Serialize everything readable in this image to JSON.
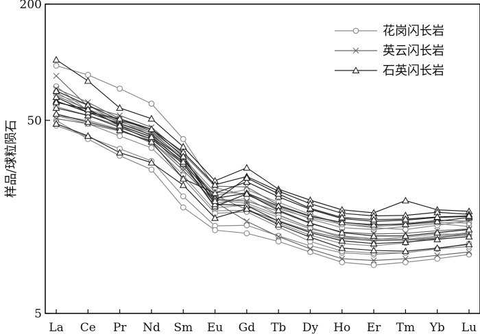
{
  "chart_data": {
    "type": "line",
    "ylabel": "样品/球粒陨石",
    "xlabel": "",
    "title": "",
    "yscale": "log",
    "ylim": [
      5,
      200
    ],
    "yticks": [
      200,
      50,
      5
    ],
    "categories": [
      "La",
      "Ce",
      "Pr",
      "Nd",
      "Sm",
      "Eu",
      "Gd",
      "Tb",
      "Dy",
      "Ho",
      "Er",
      "Tm",
      "Yb",
      "Lu"
    ],
    "legend_position": "top-right",
    "legend": [
      {
        "label": "花岗闪长岩",
        "marker": "circle",
        "color": "#888888"
      },
      {
        "label": "英云闪长岩",
        "marker": "x",
        "color": "#666666"
      },
      {
        "label": "石英闪长岩",
        "marker": "triangle",
        "color": "#222222"
      }
    ],
    "series": [
      {
        "group": 0,
        "values": [
          96,
          86,
          73,
          61,
          40,
          22.4,
          20.5,
          17.8,
          15.4,
          13.9,
          13.6,
          14.1,
          14.6,
          14.1
        ]
      },
      {
        "group": 0,
        "values": [
          68,
          60,
          48,
          43,
          32,
          21.2,
          20.9,
          17.4,
          15.6,
          14.5,
          13.9,
          13.6,
          14.3,
          15.1
        ]
      },
      {
        "group": 0,
        "values": [
          59,
          53,
          47,
          39,
          28.6,
          18.6,
          19.7,
          16.2,
          13.9,
          12.3,
          12.1,
          12.4,
          12.9,
          12.8
        ]
      },
      {
        "group": 0,
        "values": [
          53,
          50,
          45,
          38,
          26,
          17.0,
          17.1,
          14.7,
          12.7,
          11.5,
          11.2,
          11.6,
          12.4,
          12.7
        ]
      },
      {
        "group": 0,
        "values": [
          47,
          41,
          35.6,
          30.8,
          20.2,
          14.2,
          14.3,
          12.6,
          11.2,
          10.3,
          10.1,
          10.3,
          10.8,
          11.5
        ]
      },
      {
        "group": 0,
        "values": [
          50,
          40,
          32.8,
          27.8,
          17.7,
          13.5,
          13.0,
          11.8,
          10.4,
          9.2,
          8.9,
          9.2,
          9.6,
          10.1
        ]
      },
      {
        "group": 0,
        "values": [
          70,
          56,
          49,
          44,
          33,
          19.4,
          18.6,
          16.1,
          13.9,
          12.5,
          12.0,
          12.0,
          12.4,
          13.0
        ]
      },
      {
        "group": 0,
        "values": [
          62,
          57,
          50,
          41.5,
          30.2,
          17.6,
          18.2,
          15.7,
          13.7,
          12.6,
          12.2,
          12.1,
          12.6,
          13.1
        ]
      },
      {
        "group": 0,
        "values": [
          53,
          48,
          41.5,
          36,
          25,
          16.5,
          16.8,
          14.0,
          11.8,
          10.5,
          10.3,
          10.3,
          10.8,
          11.1
        ]
      },
      {
        "group": 0,
        "values": [
          75,
          56,
          49.5,
          43,
          29.4,
          20.4,
          21.9,
          18.8,
          16.3,
          14.5,
          14.1,
          14.4,
          14.8,
          14.7
        ]
      },
      {
        "group": 1,
        "values": [
          85,
          59,
          53,
          46,
          33.5,
          22.8,
          22.6,
          18.2,
          16.0,
          14.8,
          14.3,
          14.6,
          15.2,
          15.0
        ]
      },
      {
        "group": 1,
        "values": [
          73,
          62,
          51,
          44,
          31,
          20.5,
          17.2,
          15.1,
          13.3,
          12.2,
          11.9,
          12.0,
          12.2,
          13.0
        ]
      },
      {
        "group": 1,
        "values": [
          51,
          48,
          44,
          39,
          27.5,
          18.9,
          15.0,
          12.5,
          10.8,
          9.6,
          9.4,
          9.6,
          10.0,
          10.4
        ]
      },
      {
        "group": 1,
        "values": [
          67,
          57,
          47,
          41,
          28.4,
          19.5,
          19.1,
          16.9,
          14.6,
          13.2,
          12.9,
          13.0,
          13.4,
          13.7
        ]
      },
      {
        "group": 2,
        "values": [
          103,
          80,
          58,
          51,
          36.5,
          24.3,
          28.4,
          22.0,
          19.3,
          17.2,
          16.6,
          19.2,
          17.2,
          16.9
        ]
      },
      {
        "group": 2,
        "values": [
          71,
          60,
          50,
          45,
          34.2,
          23.2,
          25.6,
          21.5,
          18.5,
          16.5,
          16.0,
          16.1,
          16.7,
          16.3
        ]
      },
      {
        "group": 2,
        "values": [
          63,
          55,
          48,
          42,
          31.5,
          19.7,
          21.0,
          18.0,
          15.9,
          14.8,
          14.4,
          14.5,
          15.0,
          15.7
        ]
      },
      {
        "group": 2,
        "values": [
          58,
          53,
          46,
          40,
          29.8,
          17.9,
          20.8,
          17.1,
          14.7,
          13.1,
          12.6,
          12.6,
          13.1,
          13.6
        ]
      },
      {
        "group": 2,
        "values": [
          66,
          55,
          51,
          45,
          32.5,
          18.4,
          18.1,
          15.0,
          13.1,
          11.9,
          11.5,
          11.7,
          12.1,
          12.5
        ]
      },
      {
        "group": 2,
        "values": [
          54,
          49,
          44.5,
          38.7,
          24.9,
          21.0,
          24.0,
          20.1,
          17.3,
          15.5,
          15.0,
          15.2,
          15.7,
          15.9
        ]
      },
      {
        "group": 2,
        "values": [
          48,
          41.5,
          34.0,
          30.2,
          23.1,
          15.6,
          17.4,
          14.4,
          12.4,
          10.9,
          10.6,
          10.5,
          10.9,
          11.4
        ]
      },
      {
        "group": 2,
        "values": [
          62,
          57,
          47,
          41,
          30.5,
          19.1,
          25.2,
          20.8,
          17.5,
          15.7,
          15.3,
          15.4,
          15.8,
          16.0
        ]
      }
    ]
  }
}
